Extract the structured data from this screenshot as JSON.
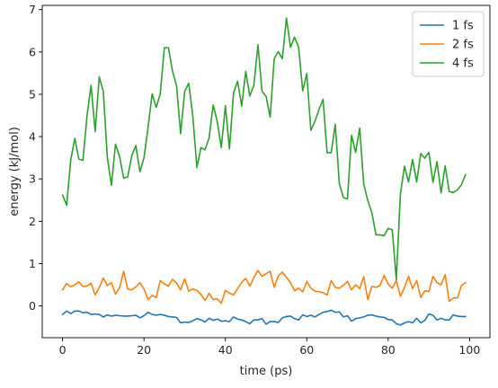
{
  "chart_data": {
    "type": "line",
    "xlabel": "time (ps)",
    "ylabel": "energy (kJ/mol)",
    "xlim": [
      -5,
      105
    ],
    "ylim": [
      -0.75,
      7.1
    ],
    "x_ticks": [
      0,
      20,
      40,
      60,
      80,
      100
    ],
    "y_ticks": [
      0,
      1,
      2,
      3,
      4,
      5,
      6,
      7
    ],
    "grid": false,
    "legend_position": "top-right",
    "x": [
      0,
      1,
      2,
      3,
      4,
      5,
      6,
      7,
      8,
      9,
      10,
      11,
      12,
      13,
      14,
      15,
      16,
      17,
      18,
      19,
      20,
      21,
      22,
      23,
      24,
      25,
      26,
      27,
      28,
      29,
      30,
      31,
      32,
      33,
      34,
      35,
      36,
      37,
      38,
      39,
      40,
      41,
      42,
      43,
      44,
      45,
      46,
      47,
      48,
      49,
      50,
      51,
      52,
      53,
      54,
      55,
      56,
      57,
      58,
      59,
      60,
      61,
      62,
      63,
      64,
      65,
      66,
      67,
      68,
      69,
      70,
      71,
      72,
      73,
      74,
      75,
      76,
      77,
      78,
      79,
      80,
      81,
      82,
      83,
      84,
      85,
      86,
      87,
      88,
      89,
      90,
      91,
      92,
      93,
      94,
      95,
      96,
      97,
      98,
      99
    ],
    "series": [
      {
        "name": "1 fs",
        "color": "#1f77b4",
        "values": [
          -0.2,
          -0.12,
          -0.18,
          -0.12,
          -0.12,
          -0.16,
          -0.15,
          -0.2,
          -0.19,
          -0.2,
          -0.26,
          -0.21,
          -0.24,
          -0.22,
          -0.23,
          -0.24,
          -0.24,
          -0.23,
          -0.22,
          -0.28,
          -0.23,
          -0.15,
          -0.2,
          -0.22,
          -0.2,
          -0.22,
          -0.25,
          -0.26,
          -0.27,
          -0.4,
          -0.38,
          -0.39,
          -0.35,
          -0.3,
          -0.33,
          -0.38,
          -0.29,
          -0.34,
          -0.31,
          -0.36,
          -0.35,
          -0.37,
          -0.26,
          -0.31,
          -0.33,
          -0.37,
          -0.42,
          -0.33,
          -0.33,
          -0.3,
          -0.43,
          -0.37,
          -0.37,
          -0.39,
          -0.28,
          -0.25,
          -0.24,
          -0.3,
          -0.33,
          -0.21,
          -0.25,
          -0.22,
          -0.26,
          -0.2,
          -0.15,
          -0.13,
          -0.1,
          -0.15,
          -0.14,
          -0.26,
          -0.23,
          -0.36,
          -0.3,
          -0.28,
          -0.26,
          -0.22,
          -0.21,
          -0.24,
          -0.26,
          -0.27,
          -0.32,
          -0.33,
          -0.42,
          -0.45,
          -0.4,
          -0.37,
          -0.4,
          -0.29,
          -0.4,
          -0.34,
          -0.19,
          -0.22,
          -0.33,
          -0.29,
          -0.33,
          -0.33,
          -0.21,
          -0.24,
          -0.25,
          -0.25
        ]
      },
      {
        "name": "2 fs",
        "color": "#ff7f0e",
        "values": [
          0.38,
          0.53,
          0.45,
          0.5,
          0.57,
          0.46,
          0.47,
          0.54,
          0.26,
          0.43,
          0.66,
          0.48,
          0.55,
          0.28,
          0.43,
          0.82,
          0.4,
          0.38,
          0.45,
          0.55,
          0.4,
          0.15,
          0.25,
          0.2,
          0.6,
          0.52,
          0.47,
          0.63,
          0.54,
          0.38,
          0.64,
          0.35,
          0.4,
          0.37,
          0.27,
          0.13,
          0.3,
          0.15,
          0.17,
          0.06,
          0.37,
          0.3,
          0.26,
          0.41,
          0.56,
          0.65,
          0.47,
          0.67,
          0.84,
          0.7,
          0.76,
          0.82,
          0.44,
          0.71,
          0.8,
          0.68,
          0.55,
          0.36,
          0.42,
          0.33,
          0.58,
          0.42,
          0.35,
          0.34,
          0.31,
          0.26,
          0.6,
          0.44,
          0.42,
          0.49,
          0.58,
          0.38,
          0.5,
          0.41,
          0.69,
          0.15,
          0.46,
          0.44,
          0.48,
          0.72,
          0.52,
          0.42,
          0.6,
          0.23,
          0.43,
          0.7,
          0.41,
          0.6,
          0.2,
          0.36,
          0.34,
          0.7,
          0.55,
          0.5,
          0.74,
          0.11,
          0.19,
          0.19,
          0.48,
          0.55
        ]
      },
      {
        "name": "4 fs",
        "color": "#2ca02c",
        "values": [
          2.62,
          2.38,
          3.45,
          3.96,
          3.47,
          3.44,
          4.49,
          5.21,
          4.12,
          5.41,
          5.07,
          3.5,
          2.85,
          3.82,
          3.53,
          3.02,
          3.05,
          3.55,
          3.79,
          3.17,
          3.5,
          4.22,
          5.01,
          4.69,
          5.01,
          6.1,
          6.1,
          5.55,
          5.2,
          4.07,
          5.07,
          5.26,
          4.48,
          3.27,
          3.74,
          3.69,
          3.97,
          4.75,
          4.36,
          3.74,
          4.73,
          3.71,
          5.03,
          5.31,
          4.72,
          5.54,
          4.96,
          5.21,
          6.17,
          5.07,
          4.95,
          4.46,
          5.84,
          6.01,
          5.84,
          6.8,
          6.11,
          6.35,
          6.11,
          5.08,
          5.49,
          4.15,
          4.36,
          4.64,
          4.88,
          3.62,
          3.62,
          4.29,
          2.89,
          2.56,
          2.53,
          4.03,
          3.63,
          4.2,
          2.87,
          2.49,
          2.2,
          1.68,
          1.68,
          1.66,
          1.83,
          1.8,
          0.62,
          2.64,
          3.3,
          2.93,
          3.46,
          2.93,
          3.6,
          3.49,
          3.63,
          2.92,
          3.41,
          2.67,
          3.31,
          2.7,
          2.68,
          2.74,
          2.86,
          3.1
        ]
      }
    ]
  }
}
